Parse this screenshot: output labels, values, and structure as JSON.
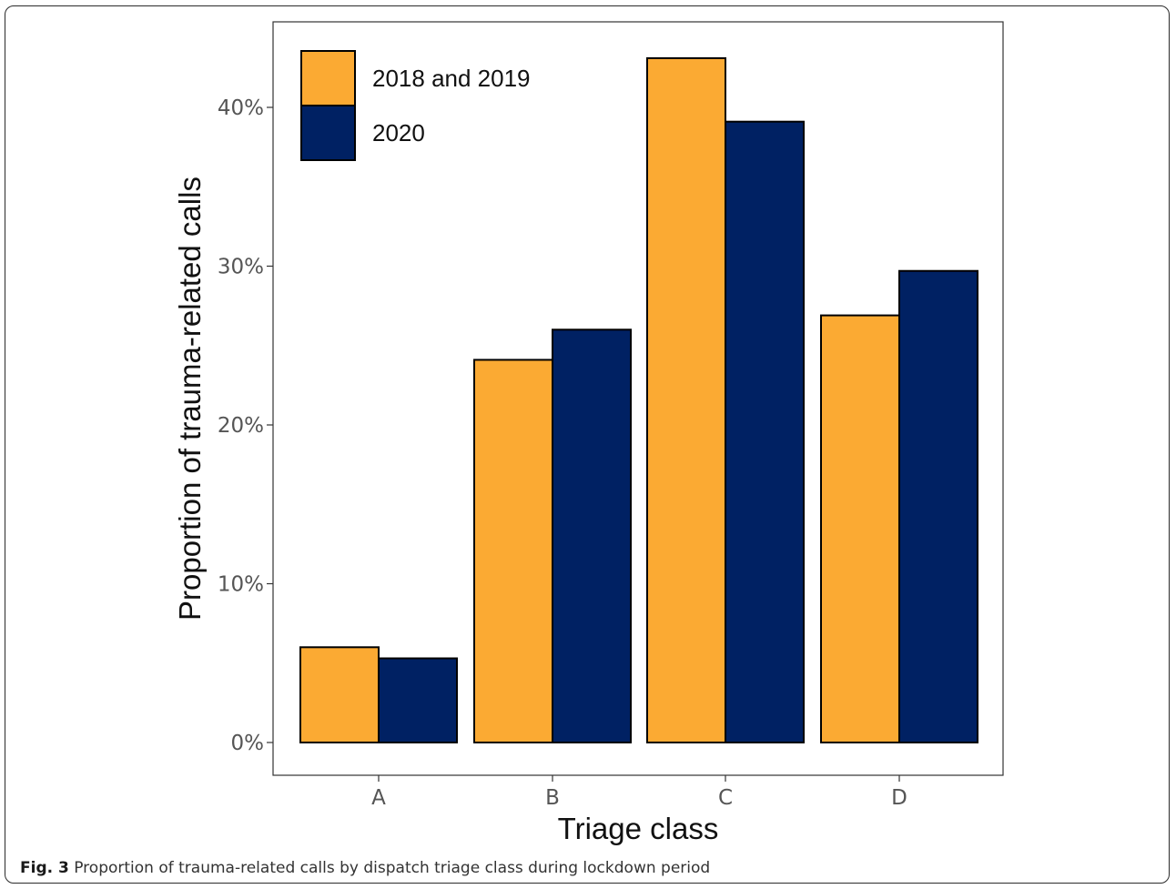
{
  "caption": {
    "label": "Fig. 3",
    "text": "Proportion of trauma-related calls by dispatch triage class during lockdown period"
  },
  "chart_data": {
    "type": "bar",
    "title": "",
    "xlabel": "Triage class",
    "ylabel": "Proportion of trauma-related calls",
    "categories": [
      "A",
      "B",
      "C",
      "D"
    ],
    "series": [
      {
        "name": "2018 and 2019",
        "color": "#FBAA33",
        "values": [
          6.0,
          24.1,
          43.1,
          26.9
        ]
      },
      {
        "name": "2020",
        "color": "#002163",
        "values": [
          5.3,
          26.0,
          39.1,
          29.7
        ]
      }
    ],
    "ylim": [
      0,
      45
    ],
    "yticks": [
      0,
      10,
      20,
      30,
      40
    ],
    "ytick_labels": [
      "0%",
      "10%",
      "20%",
      "30%",
      "40%"
    ],
    "grid": false,
    "legend_position": "top-left"
  }
}
